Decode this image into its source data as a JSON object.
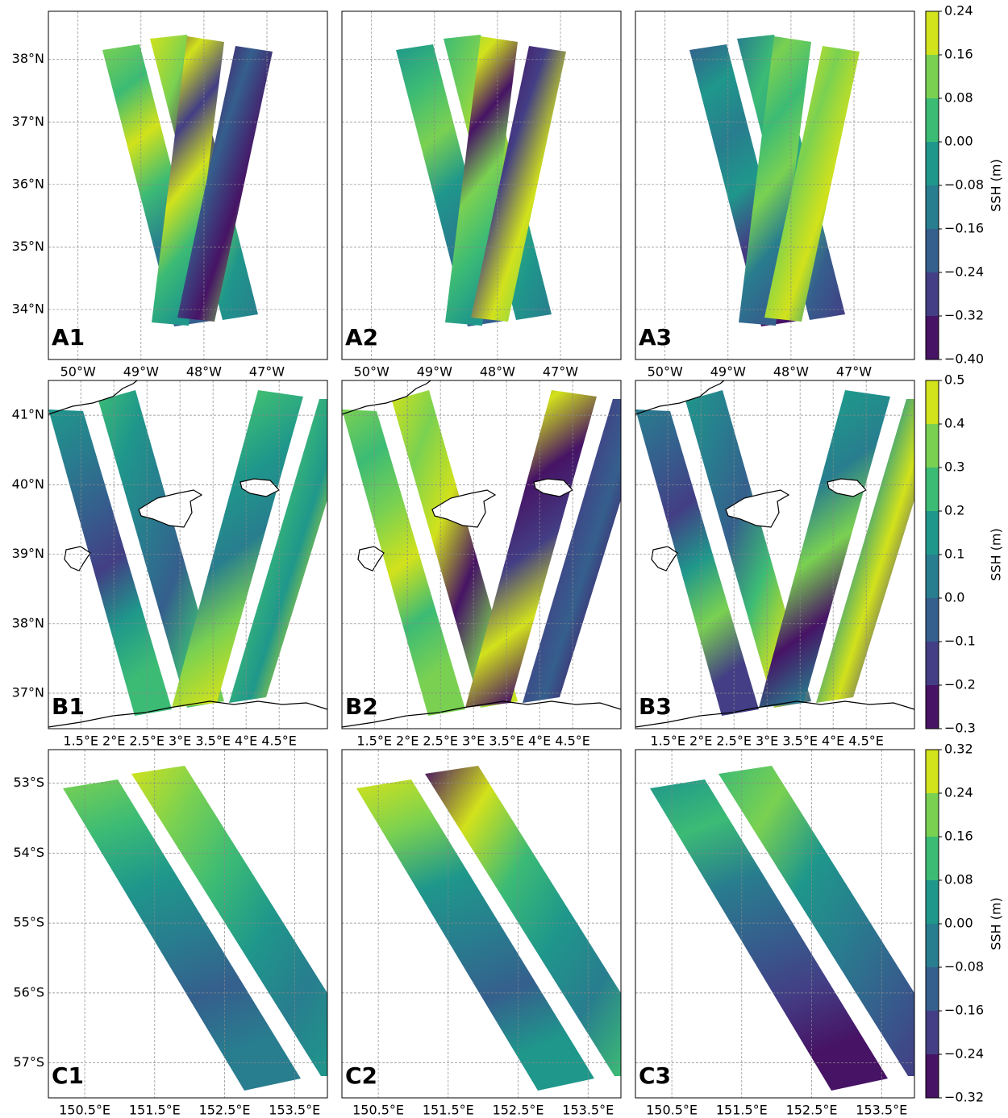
{
  "chart_data": [
    {
      "type": "map",
      "panels": [
        "A1",
        "A2",
        "A3"
      ],
      "xlim": [
        -50.47,
        -46.04
      ],
      "ylim": [
        33.2,
        38.77
      ],
      "xticks": [
        {
          "value": -50,
          "label": "50°W"
        },
        {
          "value": -49,
          "label": "49°W"
        },
        {
          "value": -48,
          "label": "48°W"
        },
        {
          "value": -47,
          "label": "47°W"
        }
      ],
      "yticks": [
        {
          "value": 34,
          "label": "34°N"
        },
        {
          "value": 35,
          "label": "35°N"
        },
        {
          "value": 36,
          "label": "36°N"
        },
        {
          "value": 37,
          "label": "37°N"
        },
        {
          "value": 38,
          "label": "38°N"
        }
      ],
      "grid": true,
      "colorbar": {
        "label": "SSH (m)",
        "lim": [
          -0.4,
          0.24
        ],
        "ticks": [
          {
            "value": -0.4,
            "label": "−0.40"
          },
          {
            "value": -0.32,
            "label": "−0.32"
          },
          {
            "value": -0.24,
            "label": "−0.24"
          },
          {
            "value": -0.16,
            "label": "−0.16"
          },
          {
            "value": -0.08,
            "label": "−0.08"
          },
          {
            "value": 0,
            "label": "0.00"
          },
          0.08,
          0.16,
          0.24
        ],
        "colors": [
          "#471365",
          "#433e85",
          "#355f8d",
          "#287d8e",
          "#1f978b",
          "#3cbb75",
          "#7ad151",
          "#d2e21b"
        ]
      }
    },
    {
      "type": "map",
      "panels": [
        "B1",
        "B2",
        "B3"
      ],
      "xlim": [
        1.01,
        5.23
      ],
      "ylim": [
        36.49,
        41.5
      ],
      "xticks": [
        {
          "value": 1.5,
          "label": "1.5°E"
        },
        {
          "value": 2,
          "label": "2°E"
        },
        {
          "value": 2.5,
          "label": "2.5°E"
        },
        {
          "value": 3,
          "label": "3°E"
        },
        {
          "value": 3.5,
          "label": "3.5°E"
        },
        {
          "value": 4,
          "label": "4°E"
        },
        {
          "value": 4.5,
          "label": "4.5°E"
        }
      ],
      "yticks": [
        {
          "value": 37,
          "label": "37°N"
        },
        {
          "value": 38,
          "label": "38°N"
        },
        {
          "value": 39,
          "label": "39°N"
        },
        {
          "value": 40,
          "label": "40°N"
        },
        {
          "value": 41,
          "label": "41°N"
        }
      ],
      "grid": true,
      "colorbar": {
        "label": "SSH (m)",
        "lim": [
          -0.3,
          0.5
        ],
        "ticks": [
          {
            "value": -0.3,
            "label": "−0.3"
          },
          {
            "value": -0.2,
            "label": "−0.2"
          },
          {
            "value": -0.1,
            "label": "−0.1"
          },
          {
            "value": 0,
            "label": "0.0"
          },
          0.1,
          0.2,
          0.3,
          0.4,
          0.5
        ],
        "colors": [
          "#471365",
          "#433e85",
          "#355f8d",
          "#287d8e",
          "#1f978b",
          "#3cbb75",
          "#7ad151",
          "#d2e21b"
        ]
      }
    },
    {
      "type": "map",
      "panels": [
        "C1",
        "C2",
        "C3"
      ],
      "xlim": [
        149.98,
        153.97
      ],
      "ylim": [
        -57.5,
        -52.52
      ],
      "xticks": [
        {
          "value": 150.5,
          "label": "150.5°E"
        },
        {
          "value": 151.5,
          "label": "151.5°E"
        },
        {
          "value": 152.5,
          "label": "152.5°E"
        },
        {
          "value": 153.5,
          "label": "153.5°E"
        }
      ],
      "yticks": [
        {
          "value": -57,
          "label": "57°S"
        },
        {
          "value": -56,
          "label": "56°S"
        },
        {
          "value": -55,
          "label": "55°S"
        },
        {
          "value": -54,
          "label": "54°S"
        },
        {
          "value": -53,
          "label": "53°S"
        }
      ],
      "grid": true,
      "colorbar": {
        "label": "SSH (m)",
        "lim": [
          -0.32,
          0.32
        ],
        "ticks": [
          {
            "value": -0.32,
            "label": "−0.32"
          },
          {
            "value": -0.24,
            "label": "−0.24"
          },
          {
            "value": -0.16,
            "label": "−0.16"
          },
          {
            "value": -0.08,
            "label": "−0.08"
          },
          {
            "value": 0,
            "label": "0.00"
          },
          0.08,
          0.16,
          0.24,
          0.32
        ],
        "colors": [
          "#471365",
          "#433e85",
          "#355f8d",
          "#287d8e",
          "#1f978b",
          "#3cbb75",
          "#7ad151",
          "#d2e21b"
        ]
      }
    }
  ]
}
